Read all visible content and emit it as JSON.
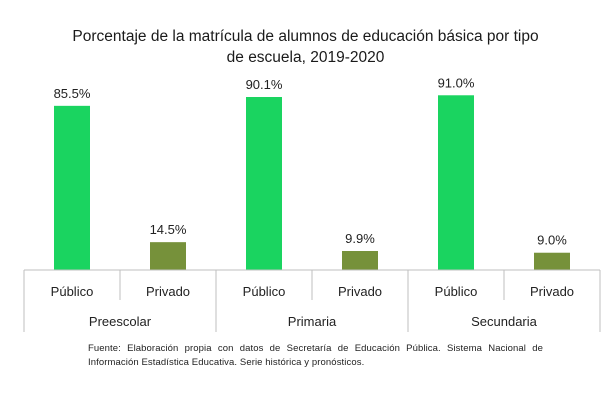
{
  "title_line1": "Porcentaje de la matrícula de alumnos de educación básica por tipo",
  "title_line2": "de escuela, 2019-2020",
  "source_note": "Fuente: Elaboración propia con datos de Secretaría de Educación Pública. Sistema Nacional de Información Estadística Educativa. Serie histórica y pronósticos.",
  "colors": {
    "publico": "#1ad460",
    "privado": "#76913a",
    "axis": "#bfbfbf"
  },
  "chart_data": {
    "type": "bar",
    "groups": [
      "Preescolar",
      "Primaria",
      "Secundaria"
    ],
    "subcategories": [
      "Público",
      "Privado"
    ],
    "categories": [
      "Público",
      "Privado",
      "Público",
      "Privado",
      "Público",
      "Privado"
    ],
    "values": [
      85.5,
      14.5,
      90.1,
      9.9,
      91.0,
      9.0
    ],
    "data_labels": [
      "85.5%",
      "14.5%",
      "90.1%",
      "9.9%",
      "91.0%",
      "9.0%"
    ],
    "ylim": [
      0,
      100
    ],
    "grid": false,
    "legend": "none"
  }
}
